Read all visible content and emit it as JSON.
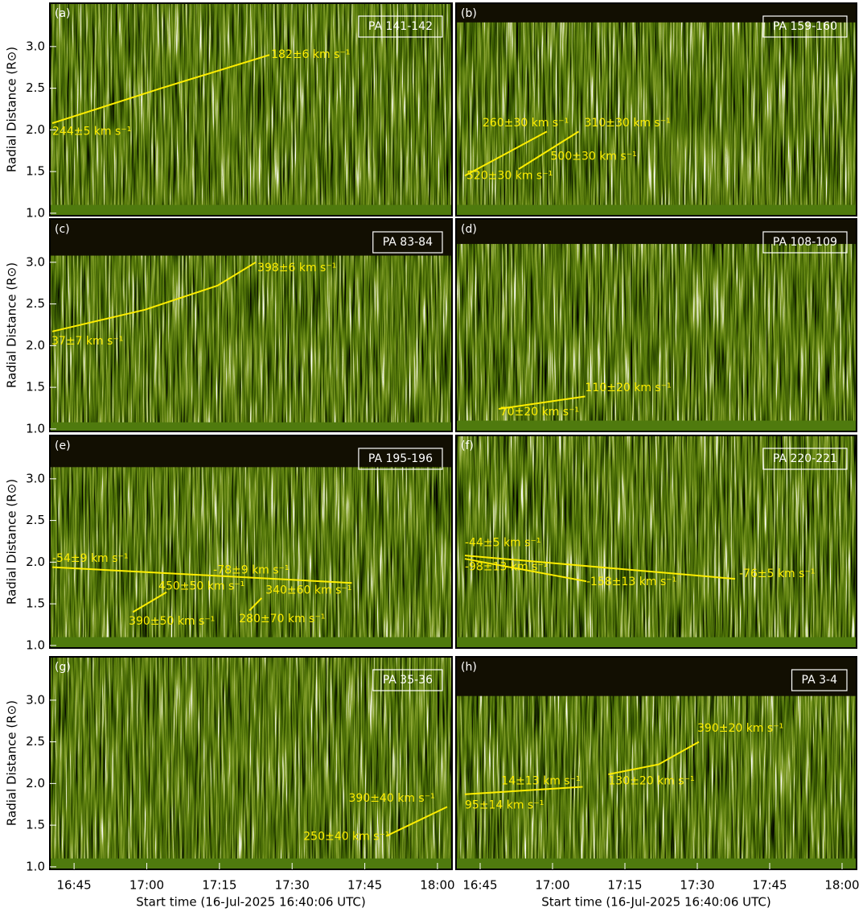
{
  "chart_data": [
    {
      "type": "heatmap",
      "panel": "(a)",
      "title": "PA 141-142",
      "xlim": [
        "16:40:00",
        "18:03:00"
      ],
      "ylim": [
        0.97,
        3.52
      ],
      "data_ylim": [
        1.1,
        3.52
      ],
      "ylabel": "Radial Distance (R⊙)",
      "yticks": [
        {
          "value": 1,
          "label": "1.0"
        },
        1.5,
        {
          "value": 2,
          "label": "2.0"
        },
        2.5,
        {
          "value": 3,
          "label": "3.0"
        }
      ],
      "track_color": "#ffee00",
      "tracks": [
        {
          "x": [
            "16:40:30",
            "17:03:00",
            "17:25:20"
          ],
          "y": [
            2.08,
            2.5,
            2.9
          ]
        }
      ],
      "annotations": [
        {
          "text": "182±6 km s⁻¹",
          "x": "17:25:40",
          "y": 2.9
        },
        {
          "text": "244±5 km s⁻¹",
          "x": "16:40:30",
          "y": 1.98
        }
      ]
    },
    {
      "type": "heatmap",
      "panel": "(b)",
      "title": "PA 159-160",
      "xlim": [
        "16:40:00",
        "18:03:00"
      ],
      "ylim": [
        0.97,
        3.52
      ],
      "data_ylim": [
        1.1,
        3.29
      ],
      "track_color": "#ffee00",
      "tracks": [
        {
          "x": [
            "16:41:50",
            "16:58:50"
          ],
          "y": [
            1.45,
            1.98
          ]
        },
        {
          "x": [
            "16:53:00",
            "17:05:25"
          ],
          "y": [
            1.53,
            1.98
          ]
        }
      ],
      "annotations": [
        {
          "text": "260±30 km s⁻¹",
          "x": "16:45:30",
          "y": 2.08
        },
        {
          "text": "310±30 km s⁻¹",
          "x": "17:06:35",
          "y": 2.08
        },
        {
          "text": "500±30 km s⁻¹",
          "x": "16:59:35",
          "y": 1.68
        },
        {
          "text": "520±30 km s⁻¹",
          "x": "16:42:10",
          "y": 1.45
        }
      ]
    },
    {
      "type": "heatmap",
      "panel": "(c)",
      "title": "PA 83-84",
      "xlim": [
        "16:40:00",
        "18:03:00"
      ],
      "ylim": [
        0.97,
        3.52
      ],
      "data_ylim": [
        1.08,
        3.08
      ],
      "ylabel": "Radial Distance (R⊙)",
      "yticks": [
        {
          "value": 1,
          "label": "1.0"
        },
        1.5,
        {
          "value": 2,
          "label": "2.0"
        },
        2.5,
        {
          "value": 3,
          "label": "3.0"
        }
      ],
      "track_color": "#ffee00",
      "tracks": [
        {
          "x": [
            "16:40:30",
            "16:59:36",
            "17:14:36",
            "17:22:30"
          ],
          "y": [
            2.17,
            2.43,
            2.72,
            3.0
          ]
        }
      ],
      "annotations": [
        {
          "text": "398±6 km s⁻¹",
          "x": "17:22:50",
          "y": 2.93
        },
        {
          "text": "37±7 km s⁻¹",
          "x": "16:40:20",
          "y": 2.05
        }
      ]
    },
    {
      "type": "heatmap",
      "panel": "(d)",
      "title": "PA 108-109",
      "xlim": [
        "16:40:00",
        "18:03:00"
      ],
      "ylim": [
        0.97,
        3.52
      ],
      "data_ylim": [
        1.1,
        3.22
      ],
      "track_color": "#ffee00",
      "tracks": [
        {
          "x": [
            "16:48:50",
            "17:06:45"
          ],
          "y": [
            1.24,
            1.39
          ]
        }
      ],
      "annotations": [
        {
          "text": "110±20 km s⁻¹",
          "x": "17:06:45",
          "y": 1.49
        },
        {
          "text": "70±20 km s⁻¹",
          "x": "16:49:08",
          "y": 1.2
        }
      ]
    },
    {
      "type": "heatmap",
      "panel": "(e)",
      "title": "PA 195-196",
      "xlim": [
        "16:40:00",
        "18:03:00"
      ],
      "ylim": [
        0.97,
        3.52
      ],
      "data_ylim": [
        1.1,
        3.14
      ],
      "ylabel": "Radial Distance (R⊙)",
      "yticks": [
        {
          "value": 1,
          "label": "1.0"
        },
        1.5,
        {
          "value": 2,
          "label": "2.0"
        },
        2.5,
        {
          "value": 3,
          "label": "3.0"
        }
      ],
      "track_color": "#ffee00",
      "tracks": [
        {
          "x": [
            "16:40:30",
            "17:42:20"
          ],
          "y": [
            1.94,
            1.75
          ]
        },
        {
          "x": [
            "16:57:07",
            "17:04:05"
          ],
          "y": [
            1.4,
            1.64
          ]
        },
        {
          "x": [
            "17:21:12",
            "17:23:42"
          ],
          "y": [
            1.42,
            1.57
          ]
        }
      ],
      "annotations": [
        {
          "text": "-54±9 km s⁻¹",
          "x": "16:40:30",
          "y": 2.04
        },
        {
          "text": "-78±9 km s⁻¹",
          "x": "17:13:43",
          "y": 1.9
        },
        {
          "text": "450±50 km s⁻¹",
          "x": "17:02:25",
          "y": 1.71
        },
        {
          "text": "390±50 km s⁻¹",
          "x": "16:56:17",
          "y": 1.29
        },
        {
          "text": "340±60 km s⁻¹",
          "x": "17:24:31",
          "y": 1.66
        },
        {
          "text": "280±70 km s⁻¹",
          "x": "17:19:02",
          "y": 1.32
        }
      ]
    },
    {
      "type": "heatmap",
      "panel": "(f)",
      "title": "PA 220-221",
      "xlim": [
        "16:40:00",
        "18:03:00"
      ],
      "ylim": [
        0.97,
        3.52
      ],
      "data_ylim": [
        1.1,
        3.52
      ],
      "track_color": "#ffee00",
      "tracks": [
        {
          "x": [
            "16:41:50",
            "17:37:50"
          ],
          "y": [
            2.08,
            1.8
          ]
        },
        {
          "x": [
            "16:41:50",
            "17:07:00"
          ],
          "y": [
            2.04,
            1.77
          ]
        }
      ],
      "annotations": [
        {
          "text": "-44±5 km s⁻¹",
          "x": "16:41:50",
          "y": 2.23
        },
        {
          "text": "-98±13 km s⁻¹",
          "x": "16:41:50",
          "y": 1.94
        },
        {
          "text": "-158±13 km s⁻¹",
          "x": "17:07:00",
          "y": 1.76
        },
        {
          "text": "-76±5 km s⁻¹",
          "x": "17:38:40",
          "y": 1.86
        }
      ]
    },
    {
      "type": "heatmap",
      "panel": "(g)",
      "title": "PA 35-36",
      "xlim": [
        "16:40:00",
        "18:03:00"
      ],
      "ylim": [
        0.97,
        3.52
      ],
      "data_ylim": [
        1.1,
        3.52
      ],
      "ylabel": "Radial Distance (R⊙)",
      "xlabel": "Start time (16-Jul-2025 16:40:06 UTC)",
      "yticks": [
        {
          "value": 1,
          "label": "1.0"
        },
        1.5,
        {
          "value": 2,
          "label": "2.0"
        },
        2.5,
        {
          "value": 3,
          "label": "3.0"
        }
      ],
      "xticks": [
        "16:45",
        "17:00",
        "17:15",
        "17:30",
        "17:45",
        "18:00"
      ],
      "track_color": "#ffee00",
      "tracks": [
        {
          "x": [
            "17:49:26",
            "18:02:00"
          ],
          "y": [
            1.37,
            1.72
          ]
        }
      ],
      "annotations": [
        {
          "text": "390±40 km s⁻¹",
          "x": "17:41:40",
          "y": 1.82
        },
        {
          "text": "250±40 km s⁻¹",
          "x": "17:32:20",
          "y": 1.36
        }
      ]
    },
    {
      "type": "heatmap",
      "panel": "(h)",
      "title": "PA 3-4",
      "xlim": [
        "16:40:00",
        "18:03:00"
      ],
      "ylim": [
        0.97,
        3.52
      ],
      "data_ylim": [
        1.1,
        3.05
      ],
      "xlabel": "Start time (16-Jul-2025 16:40:06 UTC)",
      "xticks": [
        "16:45",
        "17:00",
        "17:15",
        "17:30",
        "17:45",
        "18:00"
      ],
      "track_color": "#ffee00",
      "tracks": [
        {
          "x": [
            "16:41:50",
            "17:06:15"
          ],
          "y": [
            1.87,
            1.96
          ]
        },
        {
          "x": [
            "17:11:34",
            "17:22:00",
            "17:30:20"
          ],
          "y": [
            2.11,
            2.23,
            2.5
          ]
        }
      ],
      "annotations": [
        {
          "text": "390±20 km s⁻¹",
          "x": "17:30:00",
          "y": 2.66
        },
        {
          "text": "14±13 km s⁻¹",
          "x": "16:49:23",
          "y": 2.03
        },
        {
          "text": "95±14 km s⁻¹",
          "x": "16:41:50",
          "y": 1.74
        },
        {
          "text": "130±20 km s⁻¹",
          "x": "17:11:34",
          "y": 2.03
        }
      ]
    }
  ]
}
